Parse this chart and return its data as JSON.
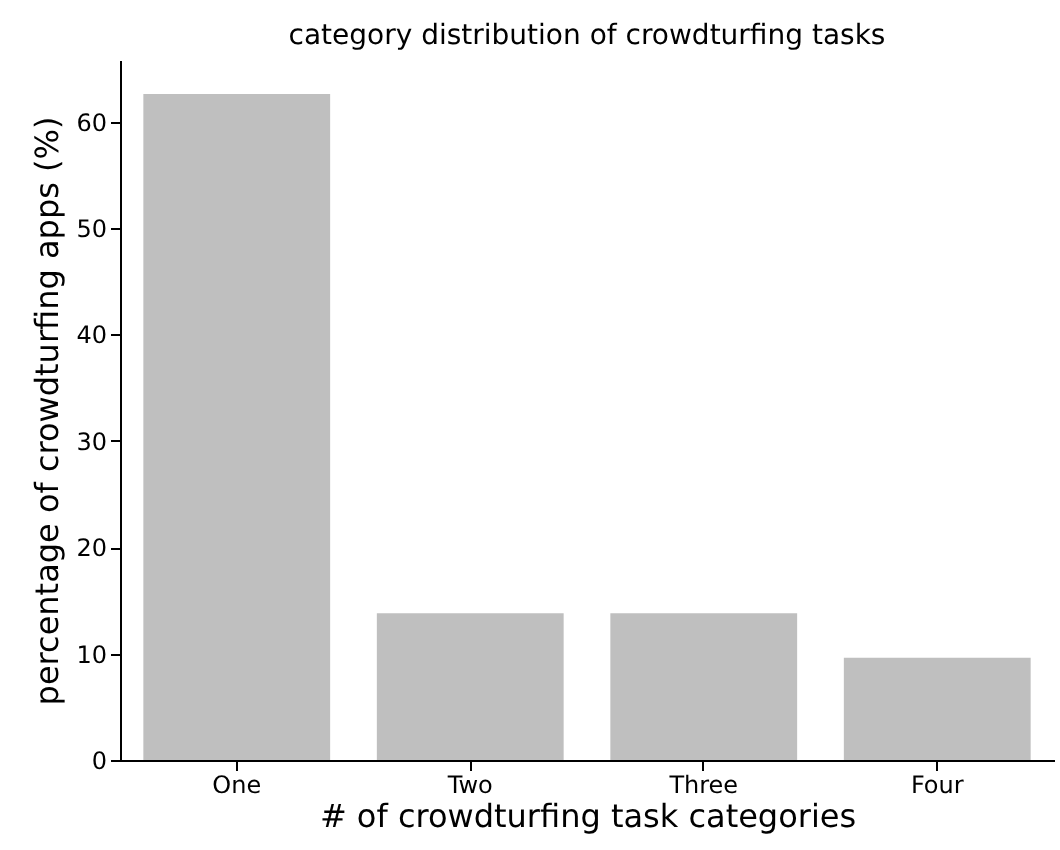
{
  "chart_data": {
    "type": "bar",
    "title": "category distribution of crowdturfing tasks",
    "xlabel": "# of crowdturfing task categories",
    "ylabel": "percentage of crowdturfing apps (%)",
    "categories": [
      "One",
      "Two",
      "Three",
      "Four"
    ],
    "values": [
      62.6,
      13.8,
      13.8,
      9.6
    ],
    "color": "#bfbfbf",
    "ylim": [
      0,
      65.8
    ],
    "yticks": [
      0,
      10,
      20,
      30,
      40,
      50,
      60
    ],
    "grid": false
  }
}
